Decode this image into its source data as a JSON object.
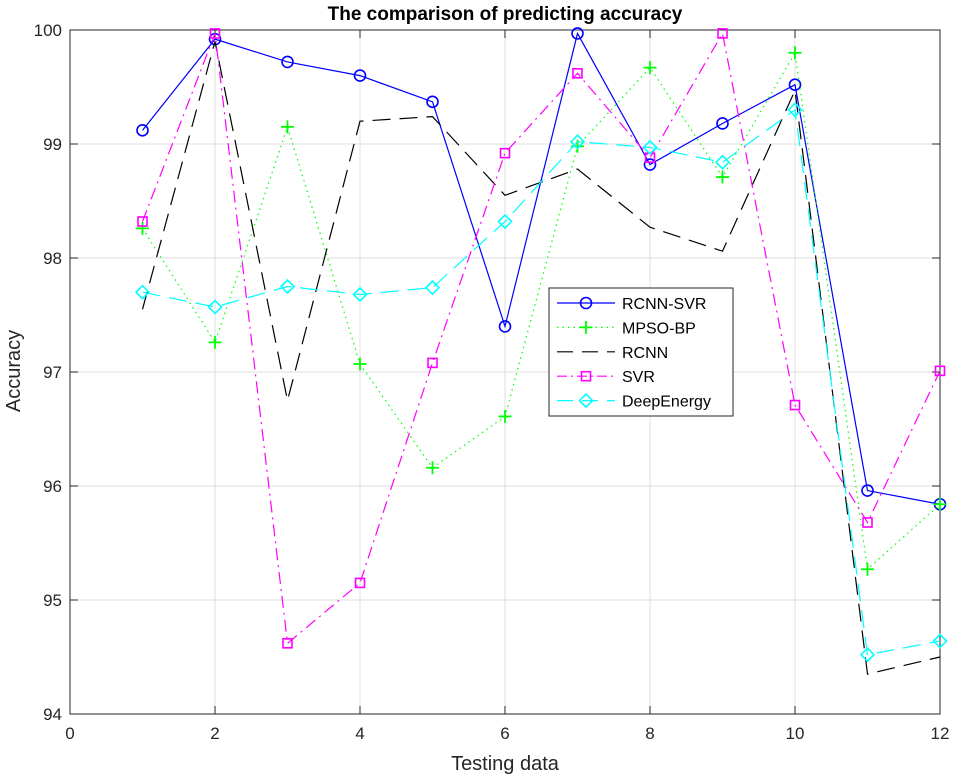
{
  "chart_data": {
    "type": "line",
    "title": "The comparison of predicting accuracy",
    "xlabel": "Testing data",
    "ylabel": "Accuracy",
    "xlim": [
      0,
      12
    ],
    "ylim": [
      94,
      100
    ],
    "xticks": [
      0,
      2,
      4,
      6,
      8,
      10,
      12
    ],
    "yticks": [
      94,
      95,
      96,
      97,
      98,
      99,
      100
    ],
    "grid": true,
    "legend_position": "center-right",
    "x": [
      1,
      2,
      3,
      4,
      5,
      6,
      7,
      8,
      9,
      10,
      11,
      12
    ],
    "series": [
      {
        "name": "RCNN-SVR",
        "color": "#0000ff",
        "line": "solid",
        "marker": "circle",
        "values": [
          99.12,
          99.92,
          99.72,
          99.6,
          99.37,
          97.4,
          99.97,
          98.82,
          99.18,
          99.52,
          95.96,
          95.84
        ]
      },
      {
        "name": "MPSO-BP",
        "color": "#00ff00",
        "line": "dotted",
        "marker": "plus",
        "values": [
          98.26,
          97.26,
          99.15,
          97.07,
          96.16,
          96.61,
          98.98,
          99.67,
          98.71,
          99.8,
          95.27,
          95.84
        ]
      },
      {
        "name": "RCNN",
        "color": "#000000",
        "line": "dashed",
        "marker": "none",
        "values": [
          97.55,
          99.9,
          96.75,
          99.2,
          99.24,
          98.55,
          98.78,
          98.27,
          98.06,
          99.47,
          94.35,
          94.5
        ]
      },
      {
        "name": "SVR",
        "color": "#ff00ff",
        "line": "dashdot",
        "marker": "square",
        "values": [
          98.32,
          99.97,
          94.62,
          95.15,
          97.08,
          98.92,
          99.62,
          98.88,
          99.97,
          96.71,
          95.68,
          97.01
        ]
      },
      {
        "name": "DeepEnergy",
        "color": "#00ffff",
        "line": "dashed",
        "marker": "diamond",
        "values": [
          97.7,
          97.57,
          97.75,
          97.68,
          97.74,
          98.32,
          99.02,
          98.97,
          98.84,
          99.3,
          94.52,
          94.64
        ]
      }
    ]
  }
}
